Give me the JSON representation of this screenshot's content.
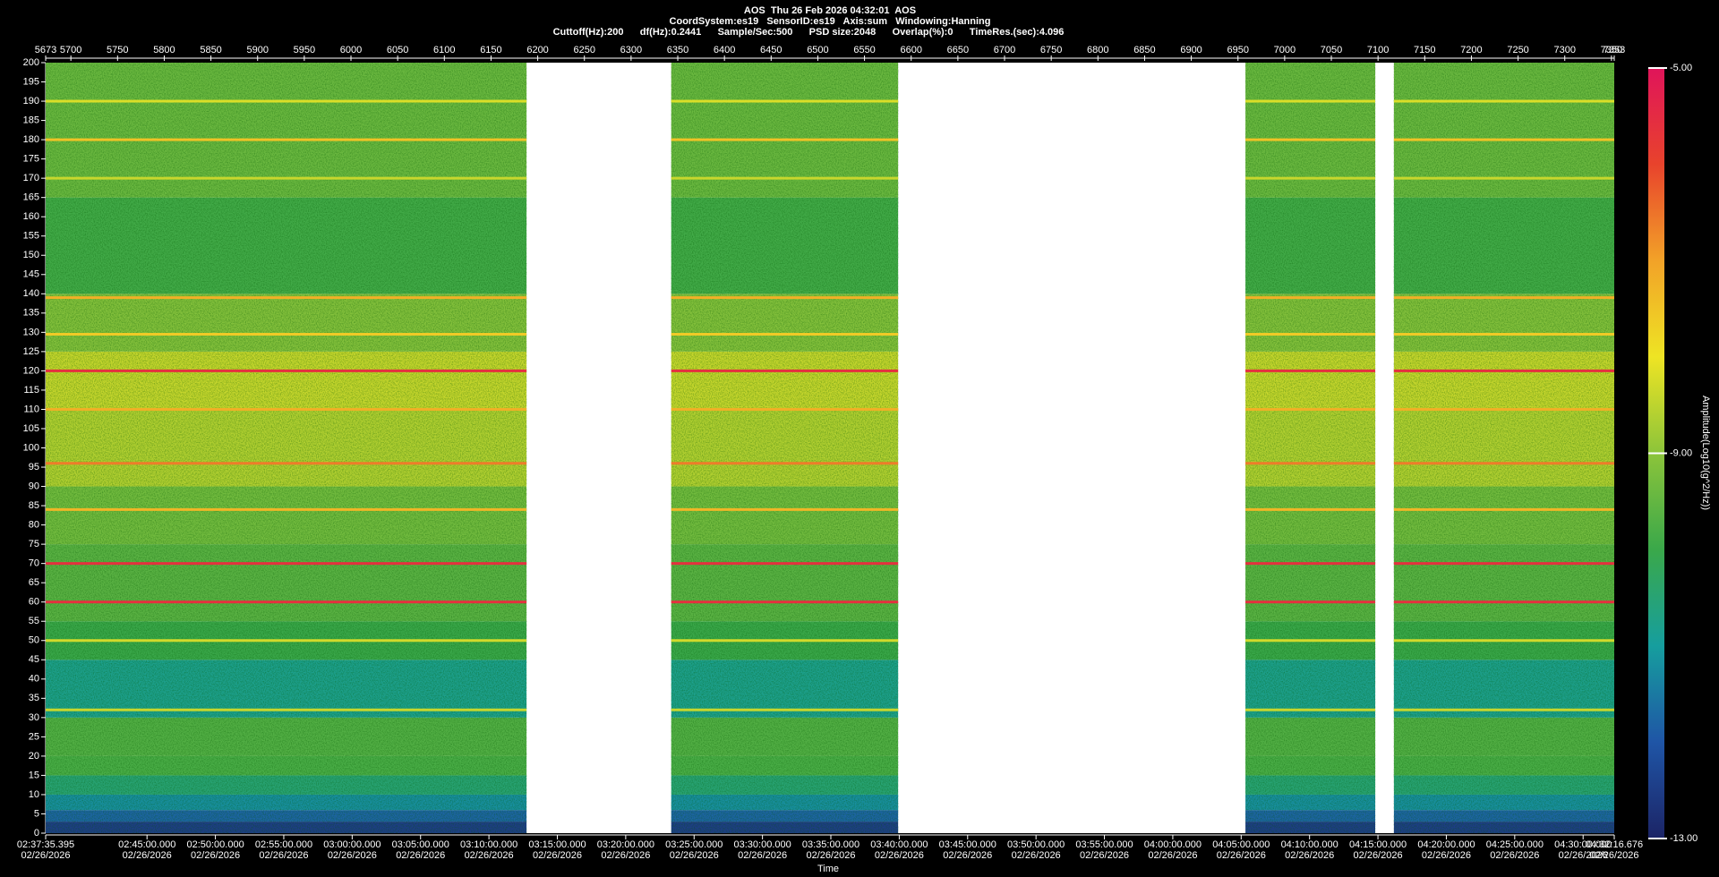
{
  "chart_data": {
    "type": "spectrogram",
    "title": "AOS  Thu 26 Feb 2026 04:32:01  AOS",
    "subtitles": [
      "CoordSystem:es19   SensorID:es19   Axis:sum   Windowing:Hanning",
      "Cuttoff(Hz):200      df(Hz):0.2441      Sample/Sec:500      PSD size:2048      Overlap(%):0      TimeRes.(sec):4.096"
    ],
    "xlabel": "Time",
    "colorbar_label": "Amplitude(Log10(g^2/Hz))",
    "xlim": [
      5673,
      7353
    ],
    "xticks": [
      5673,
      5700,
      5750,
      5800,
      5850,
      5900,
      5950,
      6000,
      6050,
      6100,
      6150,
      6200,
      6250,
      6300,
      6350,
      6400,
      6450,
      6500,
      6550,
      6600,
      6650,
      6700,
      6750,
      6800,
      6850,
      6900,
      6950,
      7000,
      7050,
      7100,
      7150,
      7200,
      7250,
      7300,
      7350,
      7353
    ],
    "time_ticks": [
      {
        "value": 5673,
        "label": "02:37:35.395",
        "date": "02/26/2026"
      },
      {
        "value": 5781.55,
        "label": "02:45:00.000",
        "date": "02/26/2026"
      },
      {
        "value": 5854.79,
        "label": "02:50:00.000",
        "date": "02/26/2026"
      },
      {
        "value": 5928.03,
        "label": "02:55:00.000",
        "date": "02/26/2026"
      },
      {
        "value": 6001.28,
        "label": "03:00:00.000",
        "date": "02/26/2026"
      },
      {
        "value": 6074.52,
        "label": "03:05:00.000",
        "date": "02/26/2026"
      },
      {
        "value": 6147.76,
        "label": "03:10:00.000",
        "date": "02/26/2026"
      },
      {
        "value": 6221.0,
        "label": "03:15:00.000",
        "date": "02/26/2026"
      },
      {
        "value": 6294.25,
        "label": "03:20:00.000",
        "date": "02/26/2026"
      },
      {
        "value": 6367.49,
        "label": "03:25:00.000",
        "date": "02/26/2026"
      },
      {
        "value": 6440.73,
        "label": "03:30:00.000",
        "date": "02/26/2026"
      },
      {
        "value": 6513.97,
        "label": "03:35:00.000",
        "date": "02/26/2026"
      },
      {
        "value": 6587.22,
        "label": "03:40:00.000",
        "date": "02/26/2026"
      },
      {
        "value": 6660.46,
        "label": "03:45:00.000",
        "date": "02/26/2026"
      },
      {
        "value": 6733.7,
        "label": "03:50:00.000",
        "date": "02/26/2026"
      },
      {
        "value": 6806.94,
        "label": "03:55:00.000",
        "date": "02/26/2026"
      },
      {
        "value": 6880.19,
        "label": "04:00:00.000",
        "date": "02/26/2026"
      },
      {
        "value": 6953.43,
        "label": "04:05:00.000",
        "date": "02/26/2026"
      },
      {
        "value": 7026.67,
        "label": "04:10:00.000",
        "date": "02/26/2026"
      },
      {
        "value": 7099.91,
        "label": "04:15:00.000",
        "date": "02/26/2026"
      },
      {
        "value": 7173.16,
        "label": "04:20:00.000",
        "date": "02/26/2026"
      },
      {
        "value": 7246.4,
        "label": "04:25:00.000",
        "date": "02/26/2026"
      },
      {
        "value": 7319.64,
        "label": "04:30:00.000",
        "date": "02/26/2026"
      },
      {
        "value": 7353,
        "label": "04:32:16.676",
        "date": "02/26/2026"
      }
    ],
    "ylim": [
      0,
      200
    ],
    "yticks": [
      0,
      5,
      10,
      15,
      20,
      25,
      30,
      35,
      40,
      45,
      50,
      55,
      60,
      65,
      70,
      75,
      80,
      85,
      90,
      95,
      100,
      105,
      110,
      115,
      120,
      125,
      130,
      135,
      140,
      145,
      150,
      155,
      160,
      165,
      170,
      175,
      180,
      185,
      190,
      195,
      200
    ],
    "clim": [
      -13,
      -5
    ],
    "cticks": [
      {
        "value": -5,
        "label": "-5.00"
      },
      {
        "value": -9,
        "label": "-9.00"
      },
      {
        "value": -13,
        "label": "-13.00"
      }
    ],
    "colormap": [
      {
        "value": -13,
        "color": "#1c2466"
      },
      {
        "value": -12,
        "color": "#1f55a6"
      },
      {
        "value": -11,
        "color": "#169e9e"
      },
      {
        "value": -10,
        "color": "#3aa84a"
      },
      {
        "value": -9,
        "color": "#8cc43a"
      },
      {
        "value": -8,
        "color": "#eee424"
      },
      {
        "value": -7,
        "color": "#f2a228"
      },
      {
        "value": -6,
        "color": "#e8432c"
      },
      {
        "value": -5,
        "color": "#e0145a"
      }
    ],
    "segments": [
      [
        5673,
        6188
      ],
      [
        6343,
        6586
      ],
      [
        6958,
        7097
      ],
      [
        7117,
        7353
      ]
    ],
    "bands": {
      "edges": [
        0,
        3,
        6,
        10,
        15,
        20,
        30,
        45,
        55,
        75,
        90,
        110,
        125,
        140,
        165,
        200
      ],
      "values": [
        -12.5,
        -11.8,
        -11.2,
        -10.5,
        -9.8,
        -9.7,
        -10.8,
        -10.0,
        -9.6,
        -9.3,
        -8.6,
        -8.4,
        -9.1,
        -9.9,
        -9.4
      ]
    },
    "lines": {
      "frequencies": [
        190,
        180,
        170,
        139,
        129.5,
        120,
        110,
        96,
        84,
        70,
        60,
        50,
        32
      ],
      "values": [
        -8.2,
        -7.5,
        -8.4,
        -7.2,
        -7.6,
        -5.6,
        -7.2,
        -6.6,
        -7.3,
        -5.6,
        -5.6,
        -8.3,
        -8.4
      ]
    }
  }
}
